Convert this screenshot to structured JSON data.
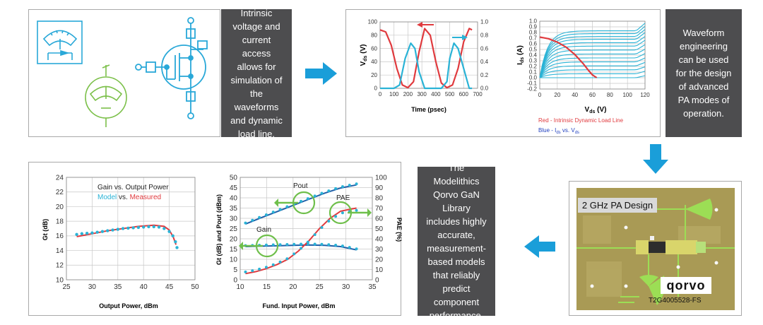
{
  "texts": {
    "intrinsic": "Intrinsic voltage and current access allows for simulation of the waveforms and dynamic load line.",
    "waveform": "Waveform engineering can be used for the design of advanced PA modes of operation.",
    "modelithics": "The Modelithics Qorvo GaN Library includes highly accurate, measurement-based models that reliably predict component performance."
  },
  "pcb": {
    "title": "2 GHz PA Design",
    "logo": "qorvo",
    "part_number": "T2G4005528-FS"
  },
  "colors": {
    "arrow": "#1a9ed9",
    "red": "#e03a3e",
    "cyan": "#2ab3d6",
    "blue": "#1f5fa8",
    "green": "#6fbf4b",
    "grey_box": "#4d4d4f",
    "pcb": "#a99a55"
  },
  "icons": [
    "meter-icon",
    "ammeter-icon",
    "transistor-icon",
    "arrow-right-icon",
    "arrow-down-icon",
    "arrow-left-icon"
  ],
  "chart_data": [
    {
      "id": "waveform",
      "type": "line",
      "xlabel": "Time (psec)",
      "ylabel_left": "V_ds (V)",
      "ylabel_right": "I_ds (A)",
      "x_ticks": [
        "0",
        "100",
        "200",
        "300",
        "400",
        "500",
        "600",
        "700"
      ],
      "y_ticks_left": [
        "0",
        "20",
        "40",
        "60",
        "80",
        "100"
      ],
      "y_ticks_right": [
        "0.0",
        "0.2",
        "0.4",
        "0.6",
        "0.8",
        "1.0"
      ],
      "xlim": [
        0,
        700
      ],
      "ylim_left": [
        0,
        100
      ],
      "ylim_right": [
        0,
        1.0
      ],
      "grid": true,
      "series": [
        {
          "axis": "left",
          "color": "#e03a3e",
          "x": [
            0,
            40,
            80,
            120,
            160,
            200,
            240,
            280,
            320,
            360,
            400,
            440,
            480,
            520,
            560,
            600,
            640,
            660
          ],
          "y": [
            88,
            85,
            65,
            30,
            5,
            1,
            10,
            55,
            90,
            80,
            40,
            8,
            1,
            5,
            30,
            70,
            90,
            88
          ]
        },
        {
          "axis": "right",
          "color": "#2ab3d6",
          "x": [
            0,
            60,
            100,
            140,
            180,
            220,
            250,
            280,
            320,
            360,
            400,
            440,
            480,
            500,
            530,
            560,
            600,
            640,
            660
          ],
          "y": [
            0,
            0,
            0,
            0.05,
            0.45,
            0.68,
            0.6,
            0.25,
            0,
            0,
            0,
            0,
            0.1,
            0.45,
            0.68,
            0.6,
            0.3,
            0,
            0
          ]
        }
      ]
    },
    {
      "id": "iv",
      "type": "line",
      "xlabel": "V_ds (V)",
      "ylabel": "I_ds (A)",
      "x_ticks": [
        "0",
        "20",
        "40",
        "60",
        "80",
        "100",
        "120"
      ],
      "y_ticks": [
        "-0.2",
        "-0.1",
        "0.0",
        "0.1",
        "0.2",
        "0.3",
        "0.4",
        "0.5",
        "0.6",
        "0.7",
        "0.8",
        "0.9",
        "1.0"
      ],
      "xlim": [
        0,
        120
      ],
      "ylim": [
        -0.2,
        1.0
      ],
      "grid": true,
      "legend": [
        {
          "label": "Red - Intrinsic Dynamic Load Line",
          "color": "#e03a3e"
        },
        {
          "label": "Blue - I_ds vs. V_ds",
          "color": "#1f3fbf"
        }
      ],
      "curve_levels": [
        0.0,
        0.07,
        0.14,
        0.21,
        0.28,
        0.35,
        0.42,
        0.49,
        0.56,
        0.62,
        0.68,
        0.73,
        0.78,
        0.83
      ],
      "load_line": {
        "x": [
          0,
          10,
          20,
          30,
          40,
          50,
          55,
          60,
          65
        ],
        "y": [
          0.72,
          0.69,
          0.63,
          0.54,
          0.41,
          0.24,
          0.14,
          0.05,
          0.0
        ]
      }
    },
    {
      "id": "gain",
      "type": "line",
      "xlabel": "Output Power, dBm",
      "ylabel": "Gt (dB)",
      "x_ticks": [
        "25",
        "30",
        "35",
        "40",
        "45",
        "50"
      ],
      "y_ticks": [
        "10",
        "12",
        "14",
        "16",
        "18",
        "20",
        "22",
        "24"
      ],
      "xlim": [
        25,
        50
      ],
      "ylim": [
        10,
        24
      ],
      "grid": true,
      "legend_title": "Gain vs. Output Power",
      "legend_model": "Model",
      "legend_vs": "vs.",
      "legend_measured": "Measured",
      "series": [
        {
          "name": "Measured",
          "color": "#e03a3e",
          "style": "line",
          "x": [
            27,
            30,
            33,
            36,
            39,
            42,
            44,
            45,
            45.8,
            46.3
          ],
          "y": [
            15.9,
            16.3,
            16.7,
            17.0,
            17.3,
            17.45,
            17.3,
            16.8,
            15.8,
            14.8
          ]
        },
        {
          "name": "Model",
          "color": "#2ab3d6",
          "style": "dots",
          "x": [
            27,
            28,
            29,
            30,
            31,
            32,
            33,
            34,
            35,
            36,
            37,
            38,
            39,
            40,
            41,
            42,
            43,
            44,
            45,
            45.7,
            46.2,
            46.5
          ],
          "y": [
            16.2,
            16.3,
            16.35,
            16.4,
            16.5,
            16.6,
            16.7,
            16.8,
            16.9,
            17.0,
            17.05,
            17.1,
            17.15,
            17.2,
            17.25,
            17.25,
            17.2,
            17.0,
            16.6,
            16.0,
            15.2,
            14.4
          ]
        }
      ]
    },
    {
      "id": "pout",
      "type": "line",
      "xlabel": "Fund. Input Power, dBm",
      "ylabel_left": "Gt (dB) and Pout (dBm)",
      "ylabel_right": "PAE (%)",
      "x_ticks": [
        "10",
        "15",
        "20",
        "25",
        "30",
        "35"
      ],
      "y_ticks_left": [
        "0",
        "5",
        "10",
        "15",
        "20",
        "25",
        "30",
        "35",
        "40",
        "45",
        "50"
      ],
      "y_ticks_right": [
        "0",
        "10",
        "20",
        "30",
        "40",
        "50",
        "60",
        "70",
        "80",
        "90",
        "100"
      ],
      "xlim": [
        10,
        35
      ],
      "ylim_left": [
        0,
        50
      ],
      "ylim_right": [
        0,
        100
      ],
      "grid": true,
      "annotations": [
        "Pout",
        "PAE",
        "Gain"
      ],
      "series": [
        {
          "name": "Pout",
          "axis": "left",
          "color": "#1f5fa8",
          "x": [
            11,
            14,
            17,
            20,
            23,
            26,
            29,
            32
          ],
          "y": [
            27.2,
            30.3,
            33.3,
            36.3,
            39.3,
            42.3,
            44.8,
            46.3
          ]
        },
        {
          "name": "Gain",
          "axis": "left",
          "color": "#1f5fa8",
          "x": [
            11,
            14,
            17,
            20,
            23,
            26,
            29,
            32
          ],
          "y": [
            16.2,
            16.4,
            16.6,
            16.8,
            17.0,
            16.8,
            16.2,
            14.6
          ]
        },
        {
          "name": "PAE",
          "axis": "right",
          "color": "#e03a3e",
          "x": [
            11,
            13,
            15,
            17,
            19,
            21,
            23,
            25,
            27,
            29,
            31,
            32
          ],
          "y": [
            6,
            8,
            11,
            15,
            20,
            28,
            38,
            50,
            60,
            67,
            69,
            70
          ]
        }
      ]
    }
  ]
}
